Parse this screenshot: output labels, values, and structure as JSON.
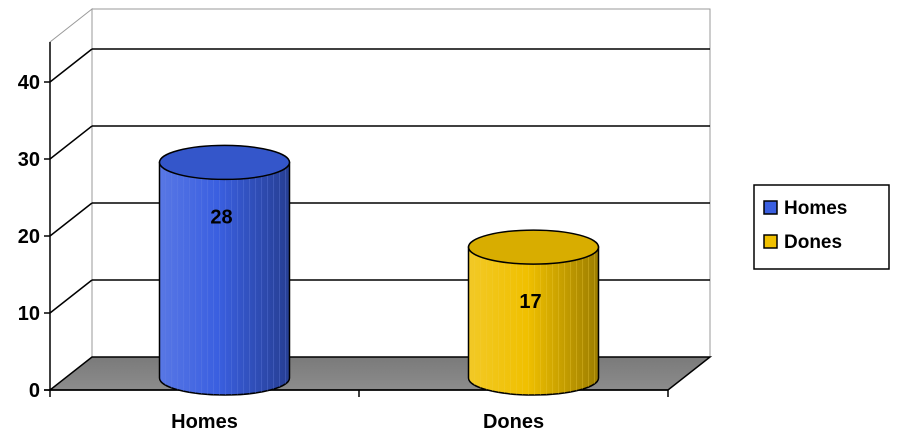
{
  "chart_data": {
    "type": "bar",
    "style": "3d-cylinder",
    "categories": [
      "Homes",
      "Dones"
    ],
    "values": [
      28,
      17
    ],
    "colors": [
      "#3a5fe0",
      "#f0c000"
    ],
    "ylim": [
      0,
      40
    ],
    "yticks": [
      0,
      10,
      20,
      30,
      40
    ],
    "grid": true,
    "legend": {
      "position": "right",
      "entries": [
        {
          "label": "Homes",
          "color": "#3a5fe0"
        },
        {
          "label": "Dones",
          "color": "#f0c000"
        }
      ]
    },
    "title": "",
    "xlabel": "",
    "ylabel": ""
  }
}
